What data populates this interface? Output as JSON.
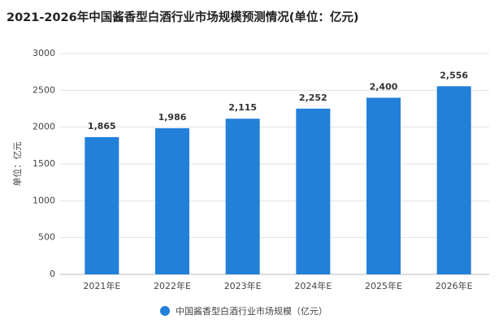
{
  "chart_data": {
    "type": "bar",
    "title": "2021-2026年中国酱香型白酒行业市场规模预测情况(单位：亿元)",
    "y_label": "单位：亿元",
    "categories": [
      "2021年E",
      "2022年E",
      "2023年E",
      "2024年E",
      "2025年E",
      "2026年E"
    ],
    "series": [
      {
        "name": "中国酱香型白酒行业市场规模（亿元）",
        "color": "#2280d8",
        "values": [
          1865,
          1986,
          2115,
          2252,
          2400,
          2556
        ],
        "value_labels": [
          "1,865",
          "1,986",
          "2,115",
          "2,252",
          "2,400",
          "2,556"
        ]
      }
    ],
    "ylim": [
      0,
      3000
    ],
    "yticks": [
      0,
      500,
      1000,
      1500,
      2000,
      2500,
      3000
    ],
    "grid": true,
    "legend": "bottom"
  }
}
